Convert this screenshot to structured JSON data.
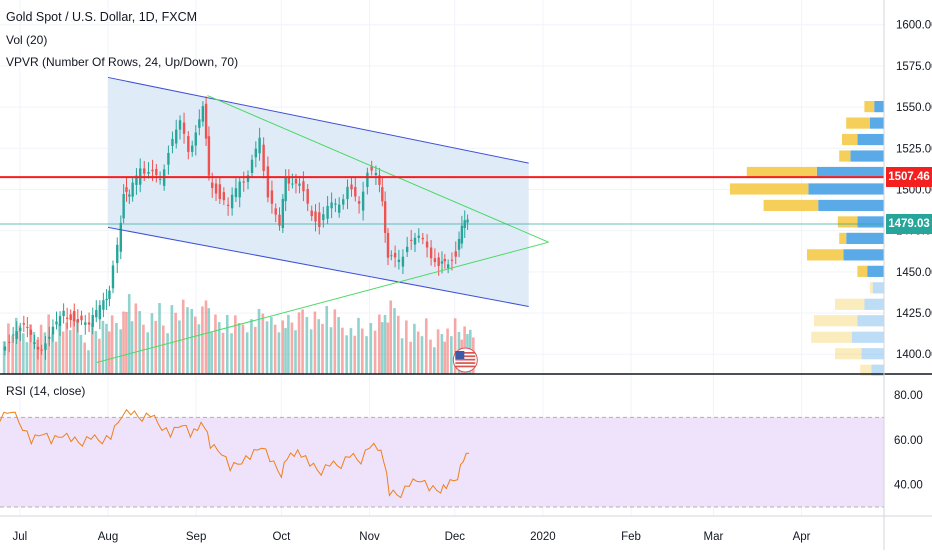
{
  "legend": {
    "symbol": "Gold Spot / U.S. Dollar, 1D, FXCM",
    "volume": "Vol (20)",
    "vpvr": "VPVR (Number Of Rows, 24, Up/Down, 70)",
    "rsi": "RSI (14, close)"
  },
  "price_tags": {
    "resistance": "1507.46",
    "last": "1479.03"
  },
  "colors": {
    "up": "#26a69a",
    "down": "#ef5350",
    "channel_line": "#3f51d6",
    "channel_fill": "#dbe8f7",
    "triangle_line": "#4cd964",
    "resistance_line": "#f41f1f",
    "last_price_line": "#26a69a",
    "vpvr_up": "#5aaae8",
    "vpvr_down": "#f5cf5a",
    "rsi_line": "#ef7f1a",
    "rsi_band": "#efe3fb"
  },
  "chart_data": [
    {
      "type": "candlestick",
      "title": "Gold Spot / U.S. Dollar, 1D, FXCM",
      "x_tick_labels": [
        "Jul",
        "Aug",
        "Sep",
        "Oct",
        "Nov",
        "Dec",
        "2020",
        "Feb",
        "Mar",
        "Apr"
      ],
      "y_tick_labels": [
        "1600.00",
        "1575.00",
        "1550.00",
        "1525.00",
        "1500.00",
        "1475.00",
        "1450.00",
        "1425.00",
        "1400.00"
      ],
      "ylim": [
        1388,
        1615
      ],
      "x_range": [
        "2019-06-24",
        "2020-04-30"
      ],
      "series": [
        {
          "name": "price",
          "points": [
            [
              "2019-06-25",
              1405
            ],
            [
              "2019-06-28",
              1410
            ],
            [
              "2019-07-03",
              1418
            ],
            [
              "2019-07-08",
              1400
            ],
            [
              "2019-07-12",
              1412
            ],
            [
              "2019-07-17",
              1425
            ],
            [
              "2019-07-22",
              1422
            ],
            [
              "2019-07-26",
              1418
            ],
            [
              "2019-07-31",
              1430
            ],
            [
              "2019-08-02",
              1440
            ],
            [
              "2019-08-05",
              1465
            ],
            [
              "2019-08-07",
              1500
            ],
            [
              "2019-08-09",
              1497
            ],
            [
              "2019-08-13",
              1510
            ],
            [
              "2019-08-16",
              1512
            ],
            [
              "2019-08-20",
              1505
            ],
            [
              "2019-08-23",
              1525
            ],
            [
              "2019-08-27",
              1542
            ],
            [
              "2019-08-30",
              1520
            ],
            [
              "2019-09-04",
              1552
            ],
            [
              "2019-09-06",
              1507
            ],
            [
              "2019-09-10",
              1497
            ],
            [
              "2019-09-13",
              1490
            ],
            [
              "2019-09-17",
              1502
            ],
            [
              "2019-09-20",
              1510
            ],
            [
              "2019-09-24",
              1530
            ],
            [
              "2019-09-27",
              1498
            ],
            [
              "2019-10-01",
              1478
            ],
            [
              "2019-10-03",
              1505
            ],
            [
              "2019-10-08",
              1505
            ],
            [
              "2019-10-11",
              1490
            ],
            [
              "2019-10-15",
              1480
            ],
            [
              "2019-10-18",
              1490
            ],
            [
              "2019-10-22",
              1488
            ],
            [
              "2019-10-25",
              1503
            ],
            [
              "2019-10-29",
              1490
            ],
            [
              "2019-11-01",
              1513
            ],
            [
              "2019-11-04",
              1510
            ],
            [
              "2019-11-06",
              1490
            ],
            [
              "2019-11-08",
              1460
            ],
            [
              "2019-11-12",
              1456
            ],
            [
              "2019-11-15",
              1468
            ],
            [
              "2019-11-19",
              1472
            ],
            [
              "2019-11-22",
              1462
            ],
            [
              "2019-11-26",
              1455
            ],
            [
              "2019-11-28",
              1455
            ],
            [
              "2019-12-02",
              1462
            ],
            [
              "2019-12-04",
              1478
            ],
            [
              "2019-12-06",
              1479
            ]
          ]
        },
        {
          "name": "volume",
          "note_values_relative": true,
          "values_relative": [
            0.55,
            0.6,
            0.45,
            0.7,
            0.5,
            0.65,
            0.4,
            0.55,
            0.5,
            0.6,
            0.75,
            1.0,
            0.8,
            0.7,
            0.85,
            0.6,
            0.9,
            0.95,
            0.75,
            0.85,
            0.7,
            0.65,
            0.6,
            0.7,
            0.75,
            0.8,
            0.7,
            0.6,
            0.65,
            0.7,
            0.75,
            0.8,
            0.7,
            0.65,
            0.6,
            0.55,
            0.6,
            0.7,
            0.65,
            0.85,
            0.6,
            0.5,
            0.55,
            0.45,
            0.5,
            0.55,
            0.45,
            0.5,
            0.4
          ]
        }
      ],
      "lines": {
        "resistance": 1507.46,
        "last_price": 1479.03,
        "channel_upper": [
          [
            "2019-08-01",
            1568
          ],
          [
            "2019-12-27",
            1516
          ]
        ],
        "channel_lower": [
          [
            "2019-08-01",
            1477
          ],
          [
            "2019-12-27",
            1429
          ]
        ],
        "triangle_upper": [
          [
            "2019-09-05",
            1557
          ],
          [
            "2020-01-03",
            1468
          ]
        ],
        "triangle_lower": [
          [
            "2019-07-28",
            1395
          ],
          [
            "2020-01-03",
            1468
          ]
        ]
      },
      "volume_profile": {
        "price_levels": [
          1550,
          1540,
          1530,
          1520,
          1510,
          1500,
          1490,
          1480,
          1470,
          1460,
          1450,
          1440,
          1430,
          1420,
          1410,
          1400,
          1390
        ],
        "up": [
          0.07,
          0.1,
          0.19,
          0.24,
          0.48,
          0.54,
          0.47,
          0.19,
          0.27,
          0.29,
          0.12,
          0.08,
          0.14,
          0.19,
          0.23,
          0.16,
          0.09
        ],
        "down": [
          0.07,
          0.17,
          0.11,
          0.08,
          0.5,
          0.56,
          0.39,
          0.14,
          0.05,
          0.26,
          0.07,
          0.02,
          0.21,
          0.31,
          0.29,
          0.19,
          0.08
        ]
      }
    },
    {
      "type": "line",
      "title": "RSI (14, close)",
      "y_tick_labels": [
        "80.00",
        "60.00",
        "40.00"
      ],
      "ylim": [
        26,
        88
      ],
      "band": [
        30,
        70
      ],
      "series": [
        {
          "name": "RSI",
          "points": [
            [
              "2019-06-24",
              70
            ],
            [
              "2019-06-28",
              74
            ],
            [
              "2019-07-02",
              66
            ],
            [
              "2019-07-05",
              60
            ],
            [
              "2019-07-09",
              64
            ],
            [
              "2019-07-12",
              60
            ],
            [
              "2019-07-16",
              63
            ],
            [
              "2019-07-19",
              61
            ],
            [
              "2019-07-23",
              59
            ],
            [
              "2019-07-26",
              62
            ],
            [
              "2019-07-30",
              60
            ],
            [
              "2019-08-02",
              62
            ],
            [
              "2019-08-06",
              72
            ],
            [
              "2019-08-09",
              73
            ],
            [
              "2019-08-13",
              70
            ],
            [
              "2019-08-16",
              72
            ],
            [
              "2019-08-20",
              66
            ],
            [
              "2019-08-23",
              63
            ],
            [
              "2019-08-27",
              68
            ],
            [
              "2019-08-30",
              63
            ],
            [
              "2019-09-04",
              67
            ],
            [
              "2019-09-06",
              58
            ],
            [
              "2019-09-10",
              55
            ],
            [
              "2019-09-13",
              48
            ],
            [
              "2019-09-17",
              51
            ],
            [
              "2019-09-20",
              53
            ],
            [
              "2019-09-24",
              58
            ],
            [
              "2019-09-27",
              52
            ],
            [
              "2019-10-01",
              45
            ],
            [
              "2019-10-03",
              53
            ],
            [
              "2019-10-08",
              54
            ],
            [
              "2019-10-11",
              50
            ],
            [
              "2019-10-15",
              46
            ],
            [
              "2019-10-18",
              50
            ],
            [
              "2019-10-22",
              49
            ],
            [
              "2019-10-25",
              54
            ],
            [
              "2019-10-29",
              51
            ],
            [
              "2019-11-01",
              58
            ],
            [
              "2019-11-04",
              57
            ],
            [
              "2019-11-06",
              52
            ],
            [
              "2019-11-08",
              37
            ],
            [
              "2019-11-12",
              36
            ],
            [
              "2019-11-15",
              41
            ],
            [
              "2019-11-19",
              43
            ],
            [
              "2019-11-22",
              39
            ],
            [
              "2019-11-26",
              38
            ],
            [
              "2019-11-28",
              40
            ],
            [
              "2019-12-02",
              44
            ],
            [
              "2019-12-04",
              52
            ],
            [
              "2019-12-06",
              54
            ]
          ]
        }
      ]
    }
  ]
}
